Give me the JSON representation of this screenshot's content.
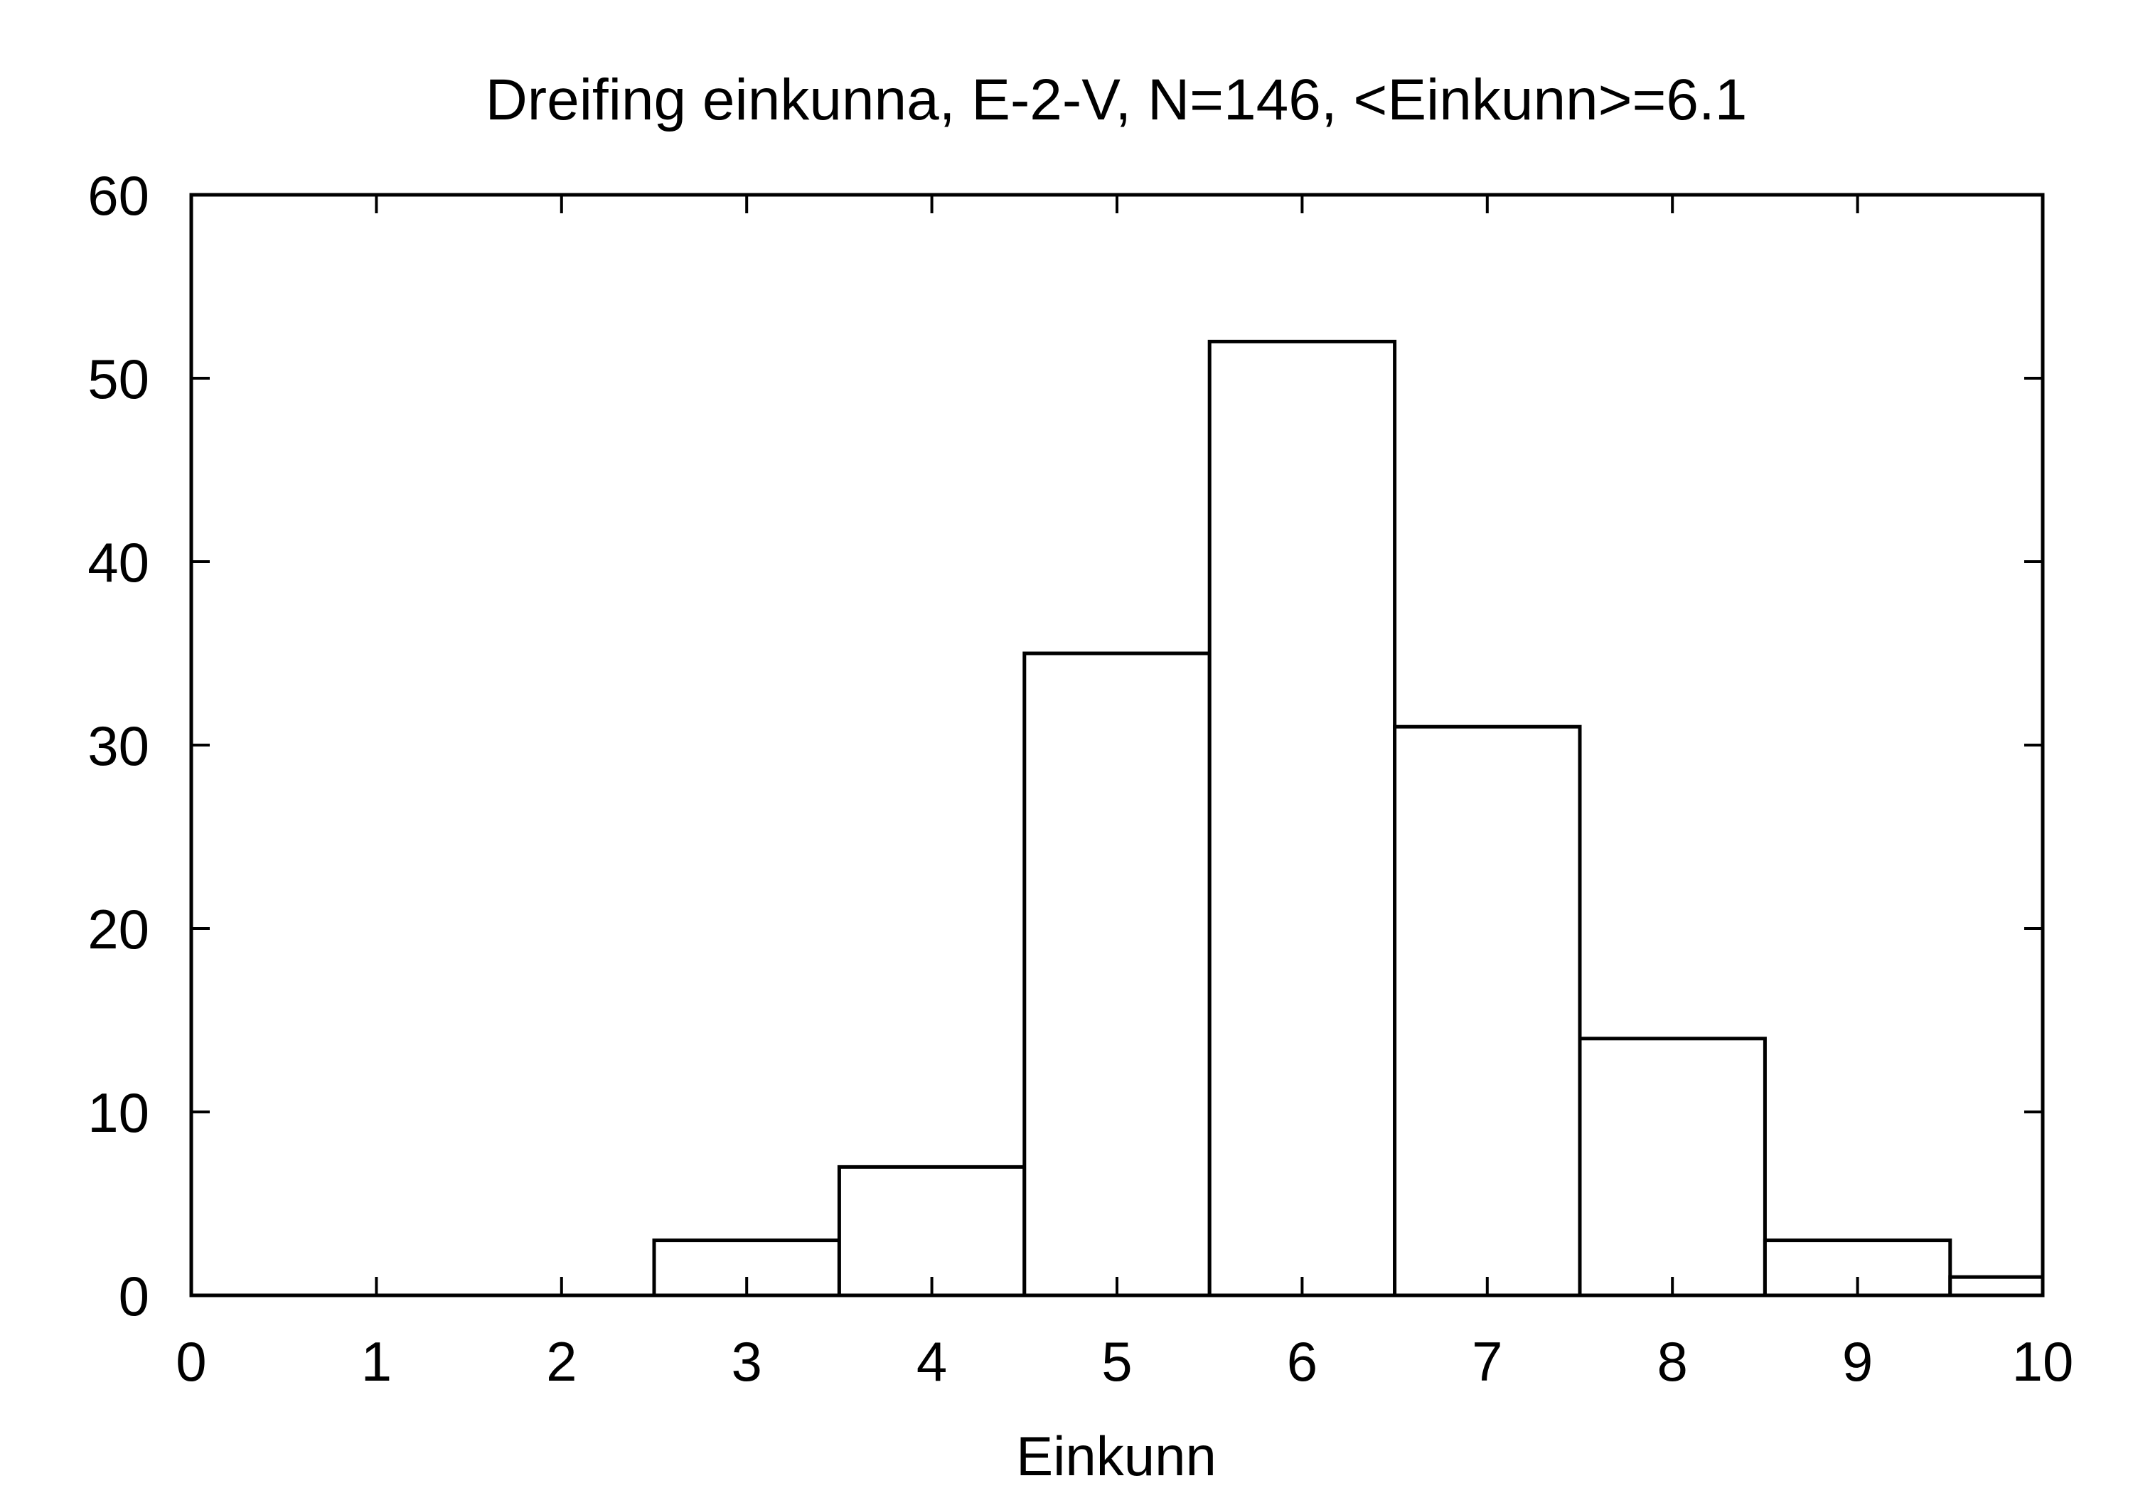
{
  "chart_data": {
    "type": "bar",
    "title": "Dreifing einkunna, E-2-V, N=146, <Einkunn>=6.1",
    "xlabel": "Einkunn",
    "ylabel": "",
    "xlim": [
      0,
      10
    ],
    "ylim": [
      0,
      60
    ],
    "xticks": [
      0,
      1,
      2,
      3,
      4,
      5,
      6,
      7,
      8,
      9,
      10
    ],
    "yticks": [
      0,
      10,
      20,
      30,
      40,
      50,
      60
    ],
    "bin_width": 1,
    "grid": false,
    "bar_fill": "#ffffff",
    "bar_stroke": "#000000",
    "bars": [
      {
        "x": 3,
        "value": 3
      },
      {
        "x": 4,
        "value": 7
      },
      {
        "x": 5,
        "value": 35
      },
      {
        "x": 6,
        "value": 52
      },
      {
        "x": 7,
        "value": 31
      },
      {
        "x": 8,
        "value": 14
      },
      {
        "x": 9,
        "value": 3
      },
      {
        "x": 10,
        "value": 1
      }
    ]
  }
}
